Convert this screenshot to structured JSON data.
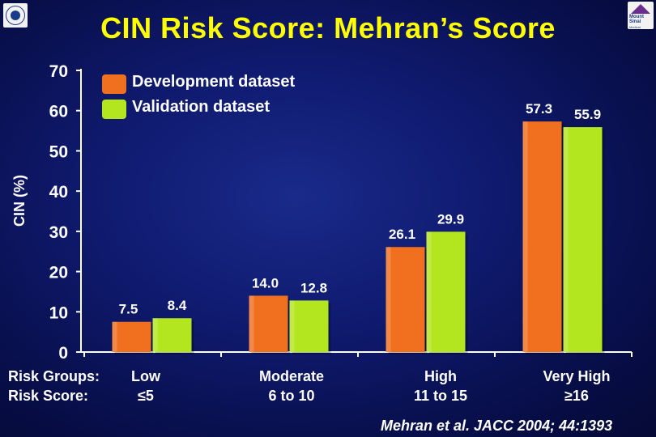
{
  "title": "CIN Risk Score: Mehran’s Score",
  "logos": {
    "left": "institution-seal-logo",
    "right": {
      "icon": "mount-sinai-logo",
      "text_line1": "Mount",
      "text_line2": "Sinai",
      "sub": "Medical"
    }
  },
  "row_labels": {
    "groups": "Risk Groups:",
    "scores": "Risk Score:"
  },
  "citation": "Mehran et al. JACC 2004; 44:1393",
  "colors": {
    "development": "#f07020",
    "validation": "#b4e620",
    "text": "#ffffff",
    "title": "#ffff00",
    "background": "#0f1a6e"
  },
  "chart_data": {
    "type": "bar",
    "title": "CIN Risk Score: Mehran’s Score",
    "xlabel": "",
    "ylabel": "CIN (%)",
    "ylim": [
      0,
      70
    ],
    "yticks": [
      0,
      10,
      20,
      30,
      40,
      50,
      60,
      70
    ],
    "categories": [
      "Low",
      "Moderate",
      "High",
      "Very High"
    ],
    "scores": [
      "≤5",
      "6 to 10",
      "11 to 15",
      "≥16"
    ],
    "legend_position": "top-left",
    "grid": false,
    "series": [
      {
        "name": "Development dataset",
        "values": [
          7.5,
          14.0,
          26.1,
          57.3
        ],
        "labels": [
          "7.5",
          "14.0",
          "26.1",
          "57.3"
        ]
      },
      {
        "name": "Validation dataset",
        "values": [
          8.4,
          12.8,
          29.9,
          55.9
        ],
        "labels": [
          "8.4",
          "12.8",
          "29.9",
          "55.9"
        ]
      }
    ]
  }
}
